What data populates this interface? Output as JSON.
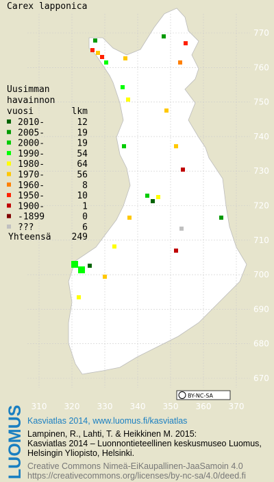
{
  "title": "Carex lapponica",
  "legend": {
    "heading": [
      "Uusimman",
      "havainnon",
      "vuosi"
    ],
    "count_heading": "lkm",
    "items": [
      {
        "label": "2010-",
        "count": 12,
        "color": "#006400"
      },
      {
        "label": "2005-",
        "count": 19,
        "color": "#009a00"
      },
      {
        "label": "2000-",
        "count": 19,
        "color": "#00cc00"
      },
      {
        "label": "1990-",
        "count": 54,
        "color": "#00ff00"
      },
      {
        "label": "1980-",
        "count": 64,
        "color": "#ffff00"
      },
      {
        "label": "1970-",
        "count": 56,
        "color": "#ffc800"
      },
      {
        "label": "1960-",
        "count": 8,
        "color": "#ff8000"
      },
      {
        "label": "1950-",
        "count": 10,
        "color": "#ff2000"
      },
      {
        "label": "1900-",
        "count": 1,
        "color": "#c00000"
      },
      {
        "label": "-1899",
        "count": 0,
        "color": "#800000"
      },
      {
        "label": "???",
        "count": 6,
        "color": "#c0c0c0"
      }
    ],
    "total_label": "Yhteensä",
    "total": 249
  },
  "grid": {
    "x_labels": [
      310,
      320,
      330,
      340,
      350,
      360,
      370
    ],
    "y_labels": [
      770,
      760,
      750,
      740,
      730,
      720,
      710,
      700,
      690,
      680,
      670
    ]
  },
  "badge": "BY-NC-SA",
  "footer": {
    "logo": "LUOMUS",
    "link": "Kasviatlas 2014, www.luomus.fi/kasviatlas",
    "citation": [
      "Lampinen, R., Lahti, T. & Heikkinen M. 2015:",
      "Kasviatlas 2014 – Luonnontieteellinen keskusmuseo Luomus,",
      "Helsingin Yliopisto, Helsinki."
    ],
    "license": [
      "Creative Commons Nimeä-EiKaupallinen-JaaSamoin 4.0",
      "https://creativecommons.org/licenses/by-nc-sa/4.0/deed.fi"
    ]
  }
}
